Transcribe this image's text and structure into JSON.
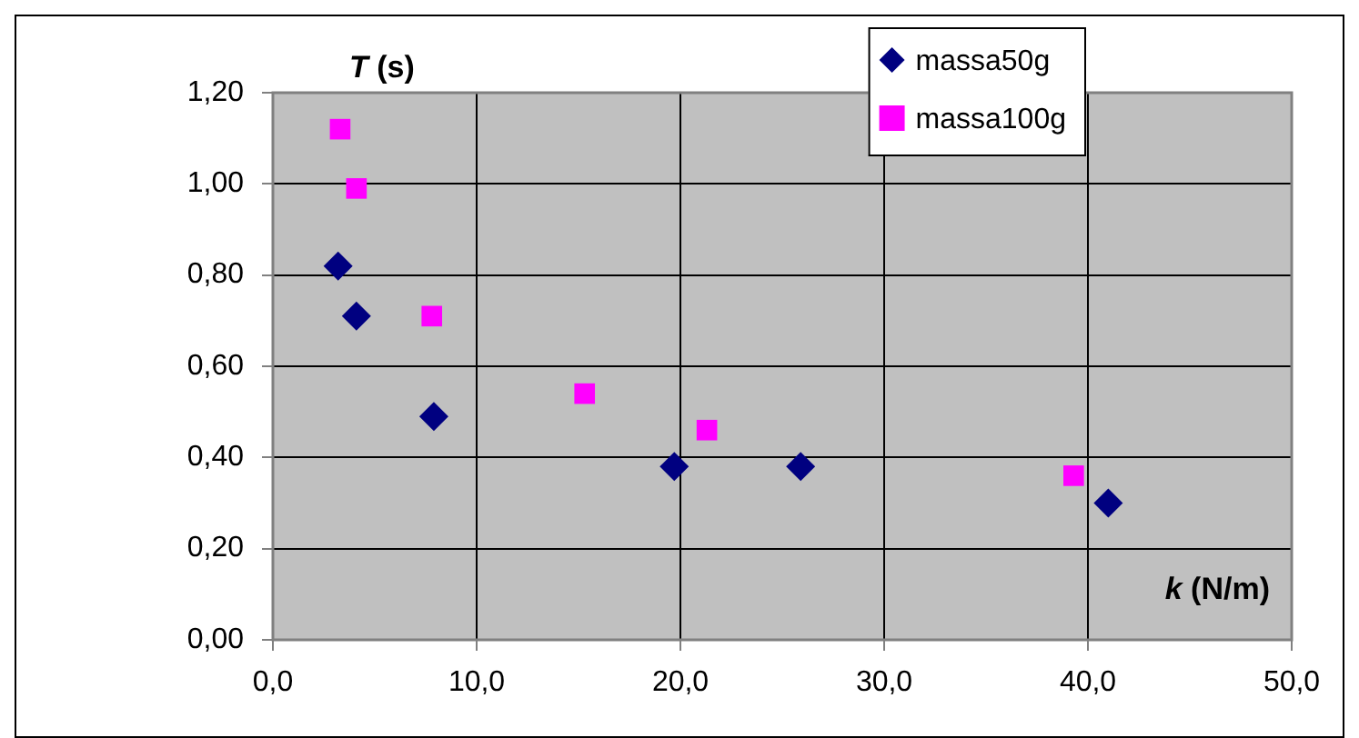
{
  "chart_data": {
    "type": "scatter",
    "xlabel": "k (N/m)",
    "ylabel": "T (s)",
    "xlim": [
      0,
      50
    ],
    "xticks": [
      {
        "value": 0,
        "label": "0,0"
      },
      {
        "value": 10,
        "label": "10,0"
      },
      {
        "value": 20,
        "label": "20,0"
      },
      {
        "value": 30,
        "label": "30,0"
      },
      {
        "value": 40,
        "label": "40,0"
      },
      {
        "value": 50,
        "label": "50,0"
      }
    ],
    "ylim": [
      0,
      1.2
    ],
    "yticks": [
      {
        "value": 0,
        "label": "0,00"
      },
      {
        "value": 0.2,
        "label": "0,20"
      },
      {
        "value": 0.4,
        "label": "0,40"
      },
      {
        "value": 0.6,
        "label": "0,60"
      },
      {
        "value": 0.8,
        "label": "0,80"
      },
      {
        "value": 1,
        "label": "1,00"
      },
      {
        "value": 1.2,
        "label": "1,20"
      }
    ],
    "grid": true,
    "legend": "top right",
    "series": [
      {
        "name": "massa50g",
        "color": "#000080",
        "marker": "diamond",
        "x": [
          3.2,
          4.1,
          7.9,
          19.7,
          25.9,
          41.0
        ],
        "values": [
          0.82,
          0.71,
          0.49,
          0.38,
          0.38,
          0.3
        ]
      },
      {
        "name": "massa100g",
        "color": "#ff00ff",
        "marker": "square",
        "x": [
          3.3,
          4.1,
          7.8,
          15.3,
          21.3,
          39.3
        ],
        "values": [
          1.12,
          0.99,
          0.71,
          0.54,
          0.46,
          0.36
        ]
      }
    ]
  }
}
